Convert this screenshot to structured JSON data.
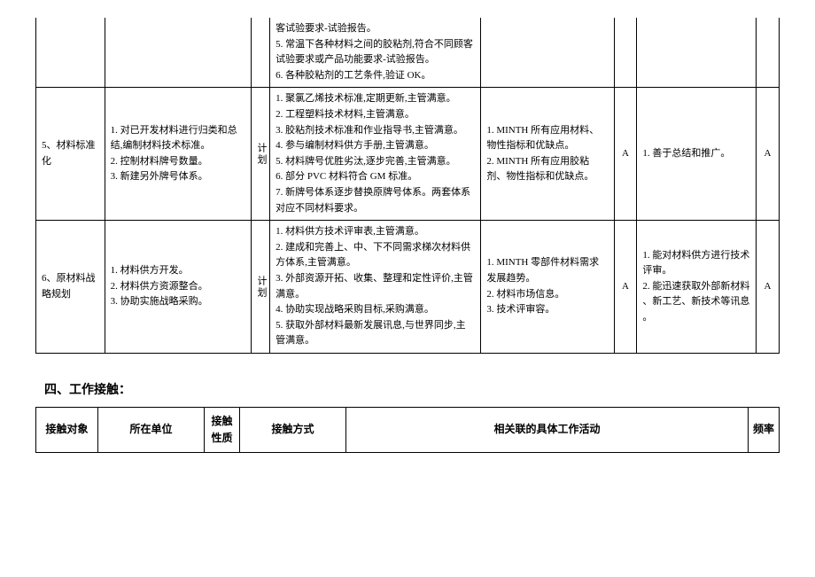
{
  "mainTable": {
    "rows": [
      {
        "label": "",
        "desc1": "",
        "planType": "",
        "desc2": "客试验要求-试验报告。\n5. 常温下各种材料之间的胶粘剂,符合不同顾客试验要求或产品功能要求-试验报告。\n6. 各种胶粘剂的工艺条件,验证 OK。",
        "desc3": "",
        "grade1": "",
        "desc4": "",
        "grade2": ""
      },
      {
        "label": "5、材料标准化",
        "desc1": "1. 对已开发材料进行归类和总结,编制材料技术标准。\n2. 控制材料牌号数量。\n3. 新建另外牌号体系。",
        "planType": "计划",
        "desc2": "1. 聚氯乙烯技术标准,定期更新,主管满意。\n2. 工程塑料技术材料,主管满意。\n3. 胶粘剂技术标准和作业指导书,主管满意。\n4. 参与编制材料供方手册,主管满意。\n5. 材料牌号优胜劣汰,逐步完善,主管满意。\n6. 部分 PVC 材料符合 GM 标准。\n7. 新牌号体系逐步替换原牌号体系。两套体系对应不同材料要求。",
        "desc3": "1. MINTH 所有应用材料、物性指标和优缺点。\n2. MINTH 所有应用胶粘剂、物性指标和优缺点。",
        "grade1": "A",
        "desc4": "1. 善于总结和推广。",
        "grade2": "A"
      },
      {
        "label": "6、原材料战略规划",
        "desc1": "1. 材料供方开发。\n2. 材料供方资源整合。\n3. 协助实施战略采购。",
        "planType": "计划",
        "desc2": "1. 材料供方技术评审表,主管满意。\n2. 建成和完善上、中、下不同需求梯次材料供方体系,主管满意。\n3. 外部资源开拓、收集、整理和定性评价,主管满意。\n4. 协助实现战略采购目标,采购满意。\n5. 获取外部材料最新发展讯息,与世界同步,主管满意。",
        "desc3": "1. MINTH 零部件材料需求发展趋势。\n2. 材料市场信息。\n3. 技术评审容。",
        "grade1": "A",
        "desc4": "1. 能对材料供方进行技术评审。\n2. 能迅速获取外部新材料\n、新工艺、新技术等讯息\n。",
        "grade2": "A"
      }
    ]
  },
  "section": {
    "title": "四、工作接触："
  },
  "contactTable": {
    "headers": {
      "col1": "接触对象",
      "col2": "所在单位",
      "col3": "接触性质",
      "col4": "接触方式",
      "col5": "相关联的具体工作活动",
      "col6": "频率"
    }
  }
}
